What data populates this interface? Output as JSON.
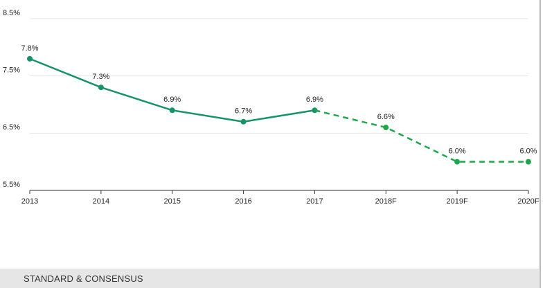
{
  "chart_data": {
    "type": "line",
    "categories": [
      "2013",
      "2014",
      "2015",
      "2016",
      "2017",
      "2018F",
      "2019F",
      "2020F"
    ],
    "series": [
      {
        "color": "#17936a",
        "dashed": false,
        "values": [
          7.8,
          7.3,
          6.9,
          6.7,
          6.9,
          null,
          null,
          null
        ],
        "value_labels": [
          "7.8%",
          "7.3%",
          "6.9%",
          "6.7%",
          "6.9%",
          null,
          null,
          null
        ]
      },
      {
        "color": "#1ea84b",
        "dashed": true,
        "values": [
          null,
          null,
          null,
          null,
          6.9,
          6.6,
          6.0,
          6.0
        ],
        "value_labels": [
          null,
          null,
          null,
          null,
          null,
          "6.6%",
          "6.0%",
          "6.0%"
        ]
      }
    ],
    "ylim": [
      5.5,
      8.5
    ],
    "yticks": [
      {
        "value": 5.5,
        "label": "5.5%"
      },
      {
        "value": 6.5,
        "label": "6.5%"
      },
      {
        "value": 7.5,
        "label": "7.5%"
      },
      {
        "value": 8.5,
        "label": "8.5%"
      }
    ],
    "grid": true
  },
  "footer": "STANDARD & CONSENSUS"
}
